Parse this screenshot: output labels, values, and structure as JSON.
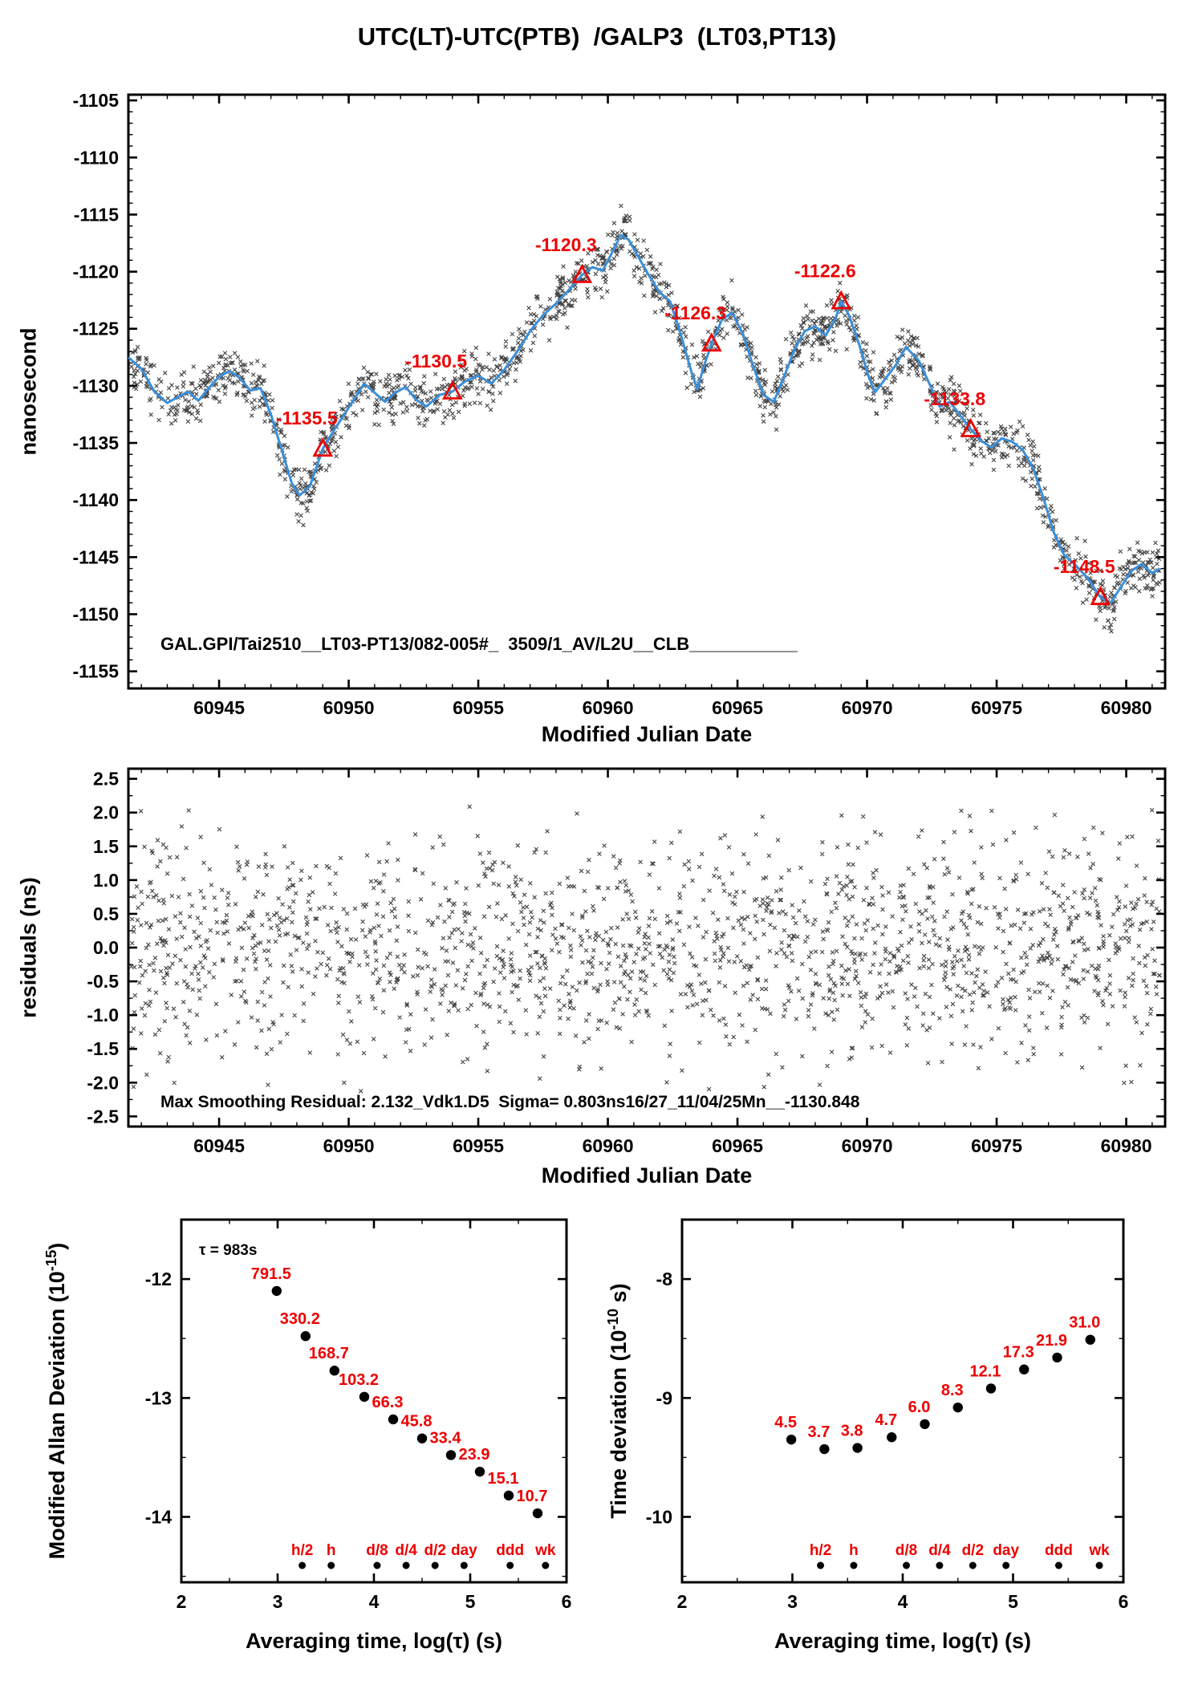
{
  "title": "UTC(LT)-UTC(PTB)  /GALP3  (LT03,PT13)",
  "colors": {
    "red": "#ee0000",
    "blue": "#3b8fd8",
    "scatter": "#1a1a1a"
  },
  "chart_data": [
    {
      "id": "phase",
      "type": "scatter",
      "xlabel": "Modified Julian Date",
      "ylabel": "nanosecond",
      "xlim": [
        60941.5,
        60981.5
      ],
      "ylim": [
        -1156.5,
        -1104.5
      ],
      "xticks": {
        "values": [
          60945,
          60950,
          60955,
          60960,
          60965,
          60970,
          60975,
          60980
        ],
        "labels": [
          "60945",
          "60950",
          "60955",
          "60960",
          "60965",
          "60970",
          "60975",
          "60980"
        ],
        "minor_step": 1
      },
      "yticks": {
        "values": [
          -1105,
          -1110,
          -1115,
          -1120,
          -1125,
          -1130,
          -1135,
          -1140,
          -1145,
          -1150,
          -1155
        ],
        "labels": [
          "-1105",
          "-1110",
          "-1115",
          "-1120",
          "-1125",
          "-1130",
          "-1135",
          "-1140",
          "-1145",
          "-1150",
          "-1155"
        ],
        "minor_step": 1
      },
      "smooth_line": {
        "x": [
          60941.5,
          60942.0,
          60942.5,
          60943.0,
          60943.4,
          60943.8,
          60944.2,
          60944.6,
          60945.0,
          60945.4,
          60945.8,
          60946.2,
          60946.6,
          60947.0,
          60947.4,
          60947.8,
          60948.1,
          60948.5,
          60949.0,
          60949.4,
          60949.8,
          60950.2,
          60950.6,
          60951.0,
          60951.4,
          60951.8,
          60952.2,
          60952.6,
          60953.0,
          60953.5,
          60954.0,
          60954.5,
          60955.0,
          60955.5,
          60956.0,
          60956.5,
          60957.0,
          60957.5,
          60958.0,
          60958.5,
          60959.0,
          60959.4,
          60959.8,
          60960.1,
          60960.5,
          60960.8,
          60961.2,
          60961.6,
          60962.0,
          60962.4,
          60962.8,
          60963.2,
          60963.45,
          60963.7,
          60964.0,
          60964.4,
          60964.8,
          60965.2,
          60965.6,
          60966.0,
          60966.4,
          60966.8,
          60967.2,
          60967.6,
          60968.0,
          60968.4,
          60968.8,
          60969.0,
          60969.3,
          60969.7,
          60970.0,
          60970.3,
          60970.7,
          60971.1,
          60971.5,
          60972.0,
          60972.4,
          60972.8,
          60973.2,
          60973.6,
          60974.0,
          60974.4,
          60974.8,
          60975.2,
          60975.6,
          60976.0,
          60976.4,
          60976.8,
          60977.2,
          60977.6,
          60978.0,
          60978.5,
          60979.0,
          60979.4,
          60979.8,
          60980.2,
          60980.6,
          60981.0,
          60981.3
        ],
        "y": [
          -1127.5,
          -1128.5,
          -1130.5,
          -1131.5,
          -1131.0,
          -1130.5,
          -1131.3,
          -1130.2,
          -1129.2,
          -1128.7,
          -1129.3,
          -1130.4,
          -1130.2,
          -1132.5,
          -1135.5,
          -1138.5,
          -1139.6,
          -1138.8,
          -1135.5,
          -1134.0,
          -1132.6,
          -1131.2,
          -1129.8,
          -1130.6,
          -1131.4,
          -1130.6,
          -1130.1,
          -1131.2,
          -1131.8,
          -1130.8,
          -1130.5,
          -1129.6,
          -1129.1,
          -1129.8,
          -1128.6,
          -1127.0,
          -1125.2,
          -1123.8,
          -1122.8,
          -1121.6,
          -1120.3,
          -1119.6,
          -1119.9,
          -1118.6,
          -1116.8,
          -1117.2,
          -1118.8,
          -1120.4,
          -1121.8,
          -1122.6,
          -1125.4,
          -1128.6,
          -1130.3,
          -1128.3,
          -1126.3,
          -1124.2,
          -1123.6,
          -1125.4,
          -1128.2,
          -1130.8,
          -1131.4,
          -1129.2,
          -1126.8,
          -1125.2,
          -1124.8,
          -1125.6,
          -1124.0,
          -1122.6,
          -1123.8,
          -1126.4,
          -1128.8,
          -1130.6,
          -1129.4,
          -1128.2,
          -1126.6,
          -1127.8,
          -1129.8,
          -1131.8,
          -1131.4,
          -1132.6,
          -1133.8,
          -1134.8,
          -1135.4,
          -1134.6,
          -1134.9,
          -1135.6,
          -1137.2,
          -1139.8,
          -1142.8,
          -1144.8,
          -1145.6,
          -1146.8,
          -1148.5,
          -1149.0,
          -1147.6,
          -1146.2,
          -1145.6,
          -1146.4,
          -1146.0
        ]
      },
      "scatter_cloud": {
        "points": 1800,
        "sigma_ns": 1.15,
        "seed": 1234,
        "x_range": [
          60941.6,
          60981.3
        ]
      },
      "calibration_points": {
        "mjd": [
          60949,
          60954,
          60959,
          60964,
          60969,
          60974,
          60979
        ],
        "ns": [
          -1135.5,
          -1130.5,
          -1120.3,
          -1126.3,
          -1122.6,
          -1133.8,
          -1148.5
        ],
        "labels": [
          "-1135.5",
          "-1130.5",
          "-1120.3",
          "-1126.3",
          "-1122.6",
          "-1133.8",
          "-1148.5"
        ]
      },
      "annotation": "GAL.GPI/Tai2510__LT03-PT13/082-005#_  3509/1_AV/L2U__CLB___________"
    },
    {
      "id": "residuals",
      "type": "scatter",
      "xlabel": "Modified Julian Date",
      "ylabel": "residuals (ns)",
      "xlim": [
        60941.5,
        60981.5
      ],
      "ylim": [
        -2.65,
        2.65
      ],
      "xticks": {
        "values": [
          60945,
          60950,
          60955,
          60960,
          60965,
          60970,
          60975,
          60980
        ],
        "labels": [
          "60945",
          "60950",
          "60955",
          "60960",
          "60965",
          "60970",
          "60975",
          "60980"
        ],
        "minor_step": 1
      },
      "yticks": {
        "values": [
          2.5,
          2.0,
          1.5,
          1.0,
          0.5,
          0.0,
          -0.5,
          -1.0,
          -1.5,
          -2.0,
          -2.5
        ],
        "labels": [
          "2.5",
          "2.0",
          "1.5",
          "1.0",
          "0.5",
          "0.0",
          "-0.5",
          "-1.0",
          "-1.5",
          "-2.0",
          "-2.5"
        ],
        "minor_step": 0.25
      },
      "scatter_cloud": {
        "points": 1800,
        "sigma_ns": 0.82,
        "clip_ns": 2.13,
        "seed": 77,
        "x_range": [
          60941.6,
          60981.3
        ]
      },
      "annotation": "Max Smoothing Residual: 2.132_Vdk1.D5  Sigma= 0.803ns16/27_11/04/25Mn__-1130.848"
    },
    {
      "id": "mdev",
      "type": "scatter",
      "xlabel": "Averaging time, log(τ) (s)",
      "ylabel_base": "Modified Allan Deviation (10",
      "ylabel_sup": "-15",
      "ylabel_close": ")",
      "xlim": [
        2,
        6
      ],
      "ylim": [
        -14.55,
        -11.5
      ],
      "xticks": {
        "values": [
          2,
          3,
          4,
          5,
          6
        ],
        "labels": [
          "2",
          "3",
          "4",
          "5",
          "6"
        ],
        "minor_step": 0.5
      },
      "yticks": {
        "values": [
          -12,
          -13,
          -14
        ],
        "labels": [
          "-12",
          "-13",
          "-14"
        ],
        "minor_step": 0.5
      },
      "tau_note": "τ = 983s",
      "points": {
        "log_tau": [
          2.99,
          3.29,
          3.59,
          3.9,
          4.2,
          4.5,
          4.8,
          5.1,
          5.4,
          5.7
        ],
        "log_value": [
          -12.1,
          -12.48,
          -12.77,
          -12.99,
          -13.18,
          -13.34,
          -13.48,
          -13.62,
          -13.82,
          -13.97
        ],
        "labels": [
          "791.5",
          "330.2",
          "168.7",
          "103.2",
          "66.3",
          "45.8",
          "33.4",
          "23.9",
          "15.1",
          "10.7"
        ]
      },
      "tau_markers": {
        "log_tau": [
          3.255,
          3.556,
          4.033,
          4.334,
          4.635,
          4.936,
          5.414,
          5.782
        ],
        "labels": [
          "h/2",
          "h",
          "d/8",
          "d/4",
          "d/2",
          "day",
          "ddd",
          "wk"
        ]
      }
    },
    {
      "id": "tdev",
      "type": "scatter",
      "xlabel": "Averaging time, log(τ) (s)",
      "ylabel_base": "Time deviation (10",
      "ylabel_sup": "-10",
      "ylabel_close": " s)",
      "xlim": [
        2,
        6
      ],
      "ylim": [
        -10.55,
        -7.5
      ],
      "xticks": {
        "values": [
          2,
          3,
          4,
          5,
          6
        ],
        "labels": [
          "2",
          "3",
          "4",
          "5",
          "6"
        ],
        "minor_step": 0.5
      },
      "yticks": {
        "values": [
          -8,
          -9,
          -10
        ],
        "labels": [
          "-8",
          "-9",
          "-10"
        ],
        "minor_step": 0.5
      },
      "points": {
        "log_tau": [
          2.99,
          3.29,
          3.59,
          3.9,
          4.2,
          4.5,
          4.8,
          5.1,
          5.4,
          5.7
        ],
        "log_value": [
          -9.35,
          -9.43,
          -9.42,
          -9.33,
          -9.22,
          -9.08,
          -8.92,
          -8.76,
          -8.66,
          -8.51
        ],
        "labels": [
          "4.5",
          "3.7",
          "3.8",
          "4.7",
          "6.0",
          "8.3",
          "12.1",
          "17.3",
          "21.9",
          "31.0"
        ]
      },
      "tau_markers": {
        "log_tau": [
          3.255,
          3.556,
          4.033,
          4.334,
          4.635,
          4.936,
          5.414,
          5.782
        ],
        "labels": [
          "h/2",
          "h",
          "d/8",
          "d/4",
          "d/2",
          "day",
          "ddd",
          "wk"
        ]
      }
    }
  ]
}
